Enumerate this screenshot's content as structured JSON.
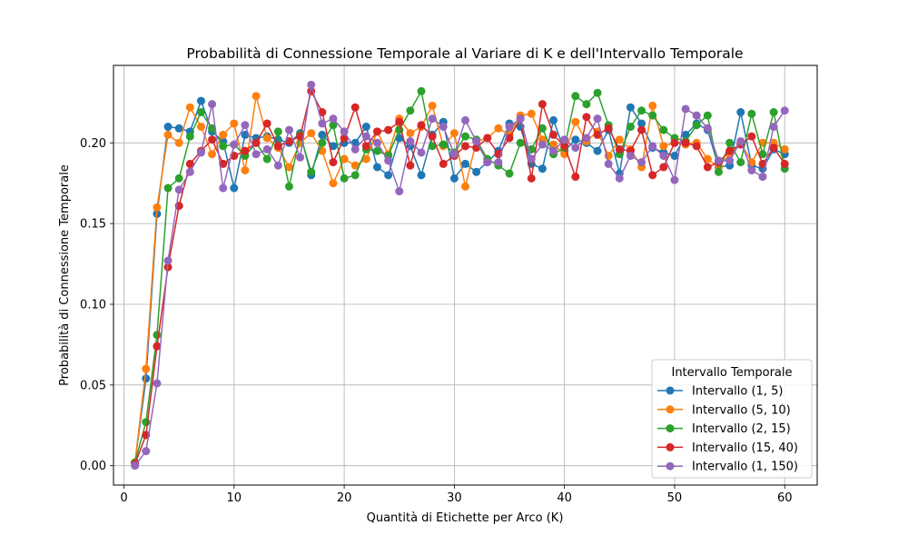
{
  "chart_data": {
    "type": "line",
    "title": "Probabilità di Connessione Temporale al Variare di K e dell'Intervallo Temporale",
    "xlabel": "Quantità di Etichette per Arco (K)",
    "ylabel": "Probabilità di Connessione Temporale",
    "xlim": [
      -0.95,
      62.95
    ],
    "ylim": [
      -0.012,
      0.248
    ],
    "xticks": [
      0,
      10,
      20,
      30,
      40,
      50,
      60
    ],
    "xtick_labels": [
      "0",
      "10",
      "20",
      "30",
      "40",
      "50",
      "60"
    ],
    "yticks": [
      0.0,
      0.05,
      0.1,
      0.15,
      0.2
    ],
    "ytick_labels": [
      "0.00",
      "0.05",
      "0.10",
      "0.15",
      "0.20"
    ],
    "grid": true,
    "legend_title": "Intervallo Temporale",
    "legend_position": "lower right",
    "x": [
      1,
      2,
      3,
      4,
      5,
      6,
      7,
      8,
      9,
      10,
      11,
      12,
      13,
      14,
      15,
      16,
      17,
      18,
      19,
      20,
      21,
      22,
      23,
      24,
      25,
      26,
      27,
      28,
      29,
      30,
      31,
      32,
      33,
      34,
      35,
      36,
      37,
      38,
      39,
      40,
      41,
      42,
      43,
      44,
      45,
      46,
      47,
      48,
      49,
      50,
      51,
      52,
      53,
      54,
      55,
      56,
      57,
      58,
      59,
      60
    ],
    "series": [
      {
        "name": "Intervallo (1, 5)",
        "color": "#1f77b4",
        "values": [
          0.002,
          0.054,
          0.156,
          0.21,
          0.209,
          0.207,
          0.226,
          0.207,
          0.201,
          0.172,
          0.205,
          0.203,
          0.204,
          0.202,
          0.2,
          0.206,
          0.18,
          0.205,
          0.198,
          0.2,
          0.2,
          0.21,
          0.185,
          0.18,
          0.203,
          0.198,
          0.18,
          0.205,
          0.213,
          0.178,
          0.187,
          0.182,
          0.188,
          0.195,
          0.212,
          0.21,
          0.187,
          0.184,
          0.214,
          0.195,
          0.202,
          0.2,
          0.195,
          0.208,
          0.181,
          0.222,
          0.212,
          0.197,
          0.194,
          0.192,
          0.205,
          0.212,
          0.208,
          0.185,
          0.186,
          0.219,
          0.186,
          0.184,
          0.196,
          0.193
        ]
      },
      {
        "name": "Intervallo (5, 10)",
        "color": "#ff7f0e",
        "values": [
          0.002,
          0.06,
          0.16,
          0.205,
          0.2,
          0.222,
          0.21,
          0.193,
          0.205,
          0.212,
          0.183,
          0.229,
          0.203,
          0.197,
          0.185,
          0.2,
          0.206,
          0.195,
          0.175,
          0.19,
          0.186,
          0.19,
          0.207,
          0.193,
          0.215,
          0.206,
          0.21,
          0.223,
          0.198,
          0.206,
          0.173,
          0.201,
          0.203,
          0.209,
          0.205,
          0.217,
          0.218,
          0.202,
          0.199,
          0.193,
          0.213,
          0.201,
          0.207,
          0.192,
          0.202,
          0.196,
          0.185,
          0.223,
          0.198,
          0.2,
          0.199,
          0.2,
          0.19,
          0.185,
          0.193,
          0.2,
          0.188,
          0.2,
          0.2,
          0.196
        ]
      },
      {
        "name": "Intervallo (2, 15)",
        "color": "#2ca02c",
        "values": [
          0.002,
          0.027,
          0.081,
          0.172,
          0.178,
          0.204,
          0.219,
          0.209,
          0.198,
          0.199,
          0.192,
          0.2,
          0.19,
          0.207,
          0.173,
          0.205,
          0.182,
          0.2,
          0.211,
          0.178,
          0.18,
          0.196,
          0.195,
          0.192,
          0.208,
          0.22,
          0.232,
          0.198,
          0.199,
          0.194,
          0.204,
          0.202,
          0.19,
          0.186,
          0.181,
          0.2,
          0.196,
          0.209,
          0.193,
          0.197,
          0.229,
          0.224,
          0.231,
          0.211,
          0.193,
          0.21,
          0.22,
          0.217,
          0.208,
          0.203,
          0.201,
          0.211,
          0.217,
          0.182,
          0.2,
          0.188,
          0.218,
          0.193,
          0.219,
          0.184
        ]
      },
      {
        "name": "Intervallo (15, 40)",
        "color": "#d62728",
        "values": [
          0.001,
          0.019,
          0.074,
          0.123,
          0.161,
          0.187,
          0.195,
          0.202,
          0.187,
          0.192,
          0.195,
          0.2,
          0.212,
          0.198,
          0.201,
          0.204,
          0.232,
          0.219,
          0.188,
          0.203,
          0.222,
          0.198,
          0.207,
          0.208,
          0.213,
          0.186,
          0.211,
          0.204,
          0.187,
          0.192,
          0.198,
          0.197,
          0.203,
          0.193,
          0.203,
          0.215,
          0.178,
          0.224,
          0.205,
          0.198,
          0.179,
          0.216,
          0.205,
          0.209,
          0.196,
          0.195,
          0.208,
          0.18,
          0.185,
          0.2,
          0.2,
          0.198,
          0.185,
          0.188,
          0.195,
          0.199,
          0.204,
          0.187,
          0.197,
          0.187
        ]
      },
      {
        "name": "Intervallo (1, 150)",
        "color": "#9467bd",
        "values": [
          0.0,
          0.009,
          0.051,
          0.127,
          0.171,
          0.182,
          0.194,
          0.224,
          0.172,
          0.199,
          0.211,
          0.193,
          0.196,
          0.186,
          0.208,
          0.191,
          0.236,
          0.212,
          0.215,
          0.207,
          0.196,
          0.204,
          0.2,
          0.189,
          0.17,
          0.201,
          0.194,
          0.215,
          0.21,
          0.193,
          0.214,
          0.201,
          0.188,
          0.188,
          0.21,
          0.215,
          0.19,
          0.199,
          0.195,
          0.202,
          0.197,
          0.203,
          0.215,
          0.187,
          0.178,
          0.192,
          0.188,
          0.198,
          0.192,
          0.177,
          0.221,
          0.217,
          0.209,
          0.189,
          0.189,
          0.201,
          0.183,
          0.179,
          0.21,
          0.22
        ]
      }
    ]
  }
}
